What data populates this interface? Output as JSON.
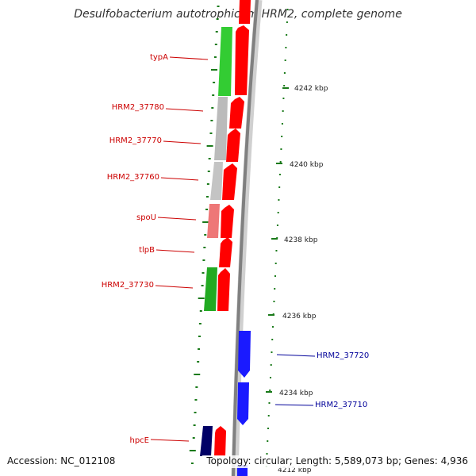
{
  "title": "Desulfobacterium autotrophicum HRM2, complete genome",
  "footer": {
    "accession": "Accession: NC_012108",
    "summary": "Topology: circular; Length: 5,589,073 bp; Genes: 4,936"
  },
  "colors": {
    "forward_cds": "#ff0000",
    "reverse_cds": "#1a1aff",
    "label_left": "#cc0000",
    "label_right": "#000099",
    "tick": "#1a7a1a",
    "backbone": "#888888"
  },
  "scale_ticks": [
    {
      "label": "4242 kbp",
      "kbp": 4242
    },
    {
      "label": "4240 kbp",
      "kbp": 4240
    },
    {
      "label": "4238 kbp",
      "kbp": 4238
    },
    {
      "label": "4236 kbp",
      "kbp": 4236
    },
    {
      "label": "4234 kbp",
      "kbp": 4234
    },
    {
      "label": "4212 kbp",
      "kbp": 4212
    }
  ],
  "gene_labels_left": [
    {
      "name": "typA"
    },
    {
      "name": "HRM2_37780"
    },
    {
      "name": "HRM2_37770"
    },
    {
      "name": "HRM2_37760"
    },
    {
      "name": "spoU"
    },
    {
      "name": "tlpB"
    },
    {
      "name": "HRM2_37730"
    },
    {
      "name": "hpcE"
    }
  ],
  "gene_labels_right": [
    {
      "name": "HRM2_37720"
    },
    {
      "name": "HRM2_37710"
    }
  ]
}
